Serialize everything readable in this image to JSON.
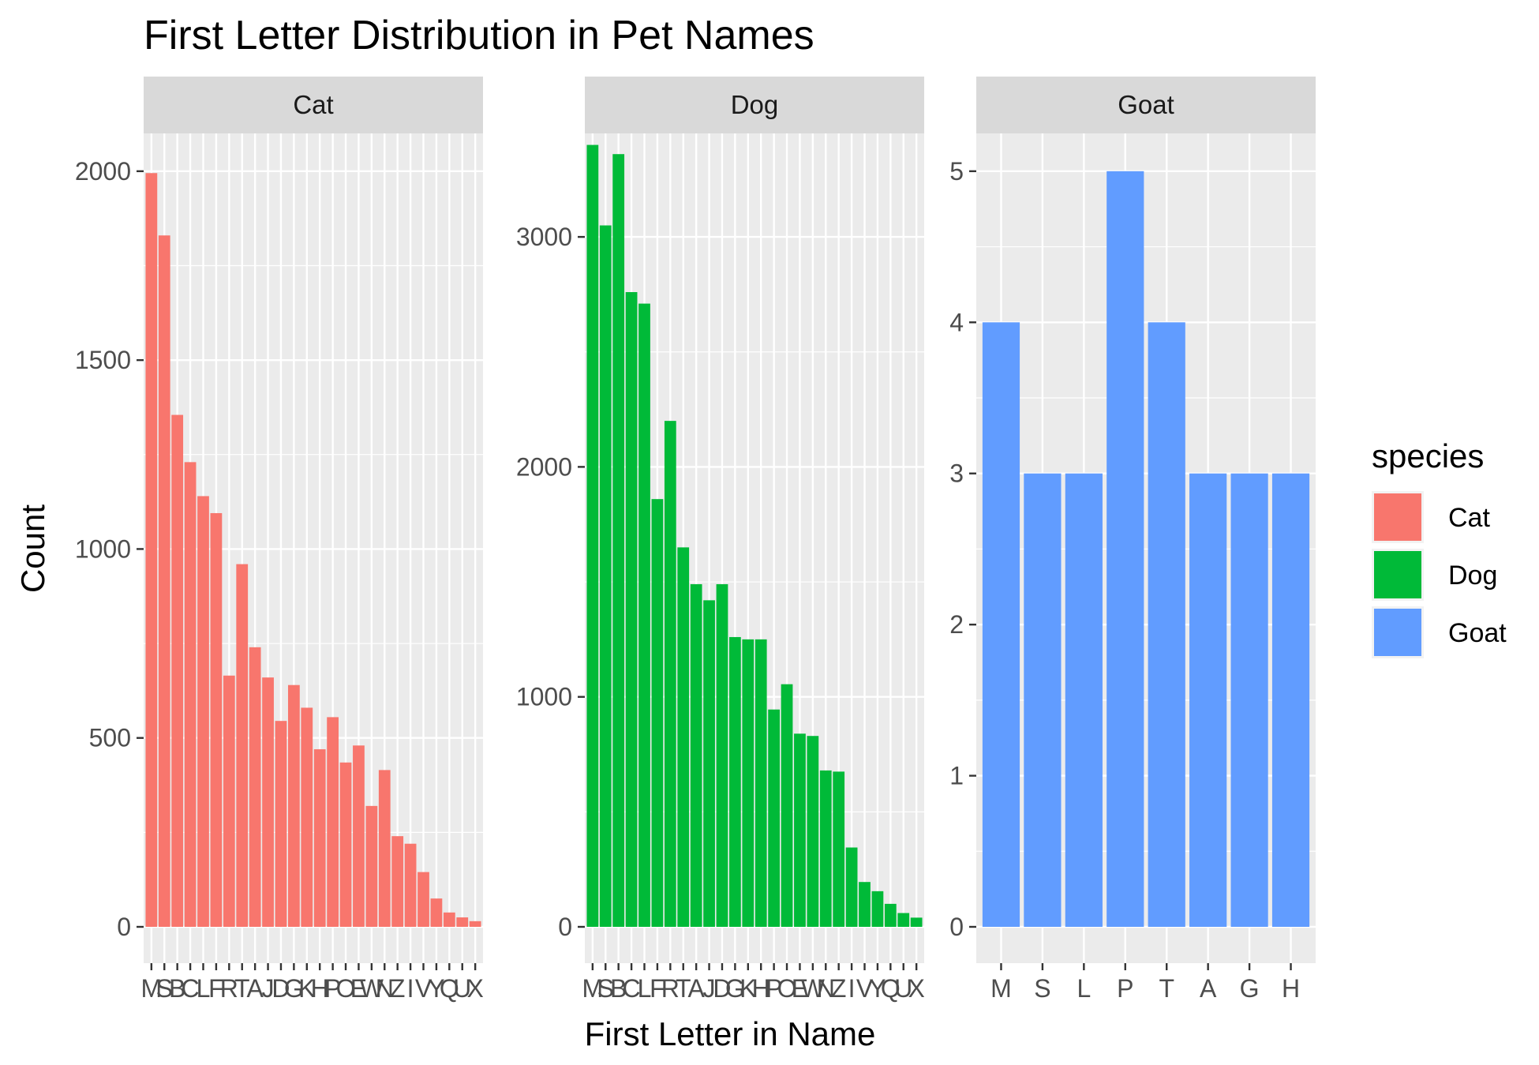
{
  "chart_data": {
    "type": "bar",
    "title": "First Letter Distribution in Pet Names",
    "xlabel": "First Letter in Name",
    "ylabel": "Count",
    "grid": true,
    "legend": {
      "title": "species",
      "position": "right",
      "entries": [
        {
          "label": "Cat",
          "color": "#F8766D"
        },
        {
          "label": "Dog",
          "color": "#00BA38"
        },
        {
          "label": "Goat",
          "color": "#619CFF"
        }
      ]
    },
    "facets": [
      {
        "name": "Cat",
        "color": "#F8766D",
        "ylim": [
          0,
          2100
        ],
        "yticks": [
          0,
          500,
          1000,
          1500,
          2000
        ],
        "categories": [
          "M",
          "S",
          "B",
          "C",
          "L",
          "F",
          "R",
          "T",
          "A",
          "J",
          "D",
          "G",
          "K",
          "H",
          "P",
          "O",
          "E",
          "W",
          "N",
          "Z",
          "I",
          "V",
          "Y",
          "Q",
          "U",
          "X"
        ],
        "values": [
          1995,
          1830,
          1355,
          1230,
          1140,
          1095,
          665,
          960,
          740,
          660,
          545,
          640,
          580,
          470,
          555,
          435,
          480,
          320,
          415,
          240,
          220,
          145,
          75,
          38,
          25,
          15
        ]
      },
      {
        "name": "Dog",
        "color": "#00BA38",
        "ylim": [
          0,
          3450
        ],
        "yticks": [
          0,
          1000,
          2000,
          3000
        ],
        "categories": [
          "M",
          "S",
          "B",
          "C",
          "L",
          "F",
          "R",
          "T",
          "A",
          "J",
          "D",
          "G",
          "K",
          "H",
          "P",
          "O",
          "E",
          "W",
          "N",
          "Z",
          "I",
          "V",
          "Y",
          "Q",
          "U",
          "X"
        ],
        "values": [
          3400,
          3050,
          3360,
          2760,
          2710,
          1860,
          2200,
          1650,
          1490,
          1420,
          1490,
          1260,
          1250,
          1250,
          945,
          1055,
          840,
          830,
          680,
          675,
          345,
          195,
          155,
          100,
          60,
          40
        ]
      },
      {
        "name": "Goat",
        "color": "#619CFF",
        "ylim": [
          0,
          5.25
        ],
        "yticks": [
          0,
          1,
          2,
          3,
          4,
          5
        ],
        "categories": [
          "M",
          "S",
          "L",
          "P",
          "T",
          "A",
          "G",
          "H"
        ],
        "values": [
          4,
          3,
          3,
          5,
          4,
          3,
          3,
          3
        ]
      }
    ]
  }
}
